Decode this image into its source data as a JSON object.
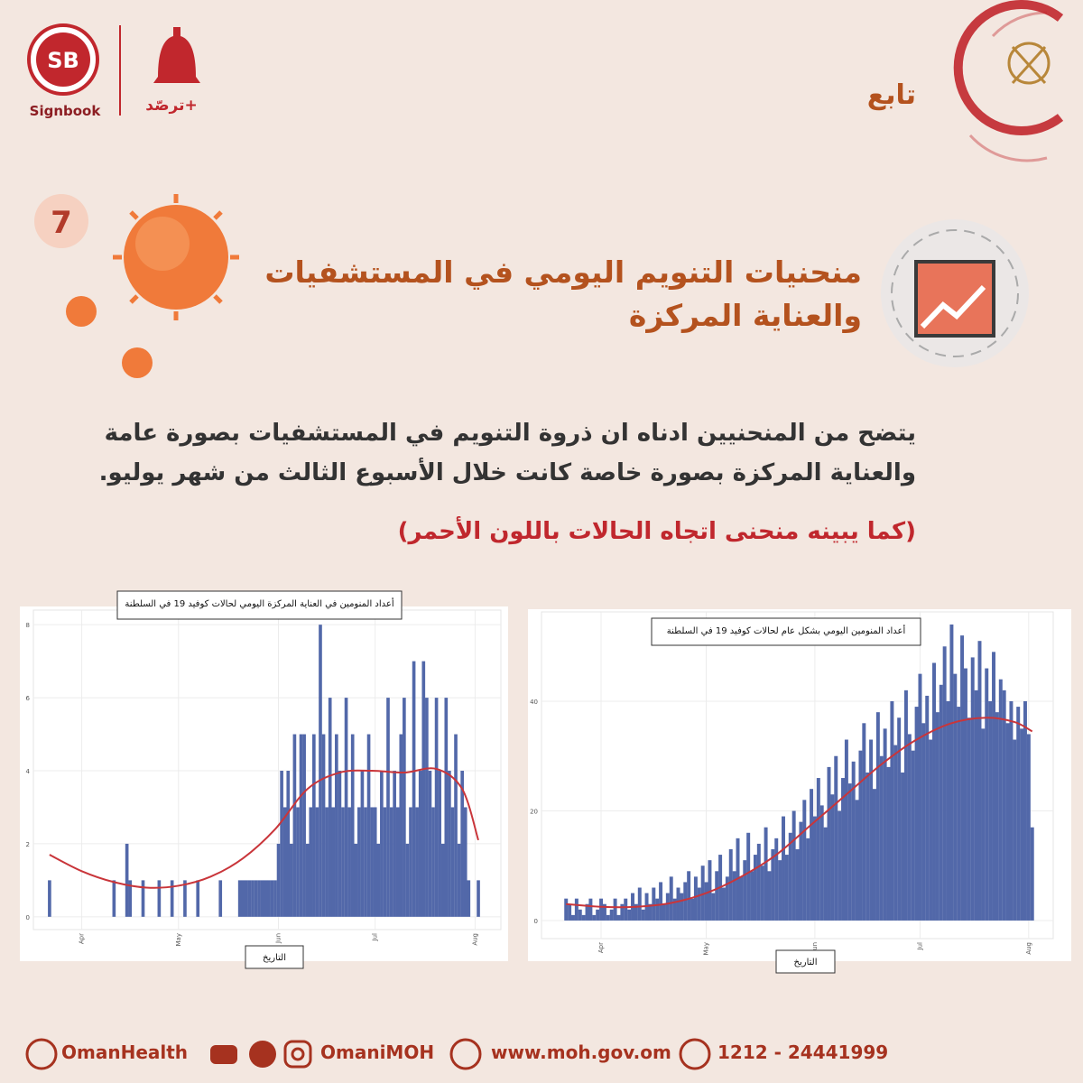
{
  "header": {
    "brand_mark": "SB",
    "brand": "Signbook",
    "app": "ترصّد+",
    "section": "تابع"
  },
  "item": {
    "number": "7",
    "title_lines": [
      "منحنيات التنويم اليومي في المستشفيات",
      "والعناية المركزة"
    ]
  },
  "body": {
    "lines": [
      "يتضح من المنحنيين ادناه ان ذروة التنويم في المستشفيات بصورة عامة",
      "والعناية المركزة بصورة خاصة كانت خلال الأسبوع الثالث من شهر يوليو."
    ],
    "note": "(كما يبينه منحنى اتجاه الحالات باللون الأحمر)"
  },
  "chart_data": [
    {
      "type": "bar",
      "title": "أعداد المنومين في العناية المركزة اليومي لحالات كوفيد 19 في السلطنة",
      "xlabel": "التاريخ",
      "xlim": [
        -5,
        140
      ],
      "xticks": [
        {
          "value": 10,
          "label": "Apr"
        },
        {
          "value": 40,
          "label": "May"
        },
        {
          "value": 71,
          "label": "Jun"
        },
        {
          "value": 101,
          "label": "Jul"
        },
        {
          "value": 132,
          "label": "Aug"
        }
      ],
      "ylim": [
        -0.35,
        8.4
      ],
      "yticks": [
        0,
        2,
        4,
        6,
        8
      ],
      "grid": true,
      "series": [
        {
          "type": "bar",
          "color": "#5268a9",
          "x": [
            0,
            1,
            2,
            3,
            4,
            5,
            6,
            7,
            8,
            9,
            10,
            11,
            12,
            13,
            14,
            15,
            16,
            17,
            18,
            19,
            20,
            21,
            22,
            23,
            24,
            25,
            26,
            27,
            28,
            29,
            30,
            31,
            32,
            33,
            34,
            35,
            36,
            37,
            38,
            39,
            40,
            41,
            42,
            43,
            44,
            45,
            46,
            47,
            48,
            49,
            50,
            51,
            52,
            53,
            54,
            55,
            56,
            57,
            58,
            59,
            60,
            61,
            62,
            63,
            64,
            65,
            66,
            67,
            68,
            69,
            70,
            71,
            72,
            73,
            74,
            75,
            76,
            77,
            78,
            79,
            80,
            81,
            82,
            83,
            84,
            85,
            86,
            87,
            88,
            89,
            90,
            91,
            92,
            93,
            94,
            95,
            96,
            97,
            98,
            99,
            100,
            101,
            102,
            103,
            104,
            105,
            106,
            107,
            108,
            109,
            110,
            111,
            112,
            113,
            114,
            115,
            116,
            117,
            118,
            119,
            120,
            121,
            122,
            123,
            124,
            125,
            126,
            127,
            128,
            129,
            130,
            131,
            132,
            133
          ],
          "values": [
            1,
            0,
            0,
            0,
            0,
            0,
            0,
            0,
            0,
            0,
            0,
            0,
            0,
            0,
            0,
            0,
            0,
            0,
            0,
            0,
            1,
            0,
            0,
            0,
            2,
            1,
            0,
            0,
            0,
            1,
            0,
            0,
            0,
            0,
            1,
            0,
            0,
            0,
            1,
            0,
            0,
            0,
            1,
            0,
            0,
            0,
            1,
            0,
            0,
            0,
            0,
            0,
            0,
            1,
            0,
            0,
            0,
            0,
            0,
            1,
            1,
            1,
            1,
            1,
            1,
            1,
            1,
            1,
            1,
            1,
            1,
            2,
            4,
            3,
            4,
            2,
            5,
            3,
            5,
            5,
            2,
            3,
            5,
            3,
            8,
            5,
            3,
            6,
            3,
            5,
            4,
            3,
            6,
            3,
            5,
            2,
            3,
            4,
            3,
            5,
            3,
            3,
            2,
            4,
            3,
            6,
            3,
            4,
            3,
            5,
            6,
            2,
            3,
            7,
            3,
            4,
            7,
            6,
            4,
            3,
            6,
            4,
            2,
            6,
            4,
            3,
            5,
            2,
            4,
            3,
            1,
            0,
            0,
            1
          ]
        },
        {
          "type": "line",
          "color": "#c9353a",
          "x": [
            0,
            10,
            20,
            30,
            40,
            50,
            60,
            70,
            80,
            90,
            100,
            110,
            120,
            128,
            133
          ],
          "values": [
            1.7,
            1.25,
            0.95,
            0.8,
            0.85,
            1.1,
            1.6,
            2.4,
            3.5,
            3.95,
            4.0,
            3.95,
            4.05,
            3.5,
            2.1
          ]
        }
      ]
    },
    {
      "type": "bar",
      "title": "أعداد المنومين اليومي بشكل عام لحالات كوفيد 19 في السلطنة",
      "xlabel": "التاريخ",
      "xlim": [
        -7,
        139
      ],
      "xticks": [
        {
          "value": 10,
          "label": "Apr"
        },
        {
          "value": 40,
          "label": "May"
        },
        {
          "value": 71,
          "label": "Jun"
        },
        {
          "value": 101,
          "label": "Jul"
        },
        {
          "value": 132,
          "label": "Aug"
        }
      ],
      "ylim": [
        -3.3,
        56.3
      ],
      "yticks": [
        0,
        20,
        40
      ],
      "grid": true,
      "series": [
        {
          "type": "bar",
          "color": "#5268a9",
          "x": [
            0,
            1,
            2,
            3,
            4,
            5,
            6,
            7,
            8,
            9,
            10,
            11,
            12,
            13,
            14,
            15,
            16,
            17,
            18,
            19,
            20,
            21,
            22,
            23,
            24,
            25,
            26,
            27,
            28,
            29,
            30,
            31,
            32,
            33,
            34,
            35,
            36,
            37,
            38,
            39,
            40,
            41,
            42,
            43,
            44,
            45,
            46,
            47,
            48,
            49,
            50,
            51,
            52,
            53,
            54,
            55,
            56,
            57,
            58,
            59,
            60,
            61,
            62,
            63,
            64,
            65,
            66,
            67,
            68,
            69,
            70,
            71,
            72,
            73,
            74,
            75,
            76,
            77,
            78,
            79,
            80,
            81,
            82,
            83,
            84,
            85,
            86,
            87,
            88,
            89,
            90,
            91,
            92,
            93,
            94,
            95,
            96,
            97,
            98,
            99,
            100,
            101,
            102,
            103,
            104,
            105,
            106,
            107,
            108,
            109,
            110,
            111,
            112,
            113,
            114,
            115,
            116,
            117,
            118,
            119,
            120,
            121,
            122,
            123,
            124,
            125,
            126,
            127,
            128,
            129,
            130,
            131,
            132,
            133
          ],
          "values": [
            4,
            3,
            1,
            4,
            2,
            1,
            3,
            4,
            1,
            2,
            4,
            3,
            1,
            2,
            4,
            1,
            3,
            4,
            2,
            5,
            3,
            6,
            2,
            5,
            3,
            6,
            4,
            7,
            3,
            5,
            8,
            4,
            6,
            5,
            7,
            9,
            4,
            8,
            6,
            10,
            7,
            11,
            5,
            9,
            12,
            6,
            8,
            13,
            9,
            15,
            8,
            11,
            16,
            9,
            12,
            14,
            10,
            17,
            9,
            13,
            15,
            11,
            19,
            12,
            16,
            20,
            13,
            18,
            22,
            15,
            24,
            19,
            26,
            21,
            17,
            28,
            23,
            30,
            20,
            26,
            33,
            25,
            29,
            22,
            31,
            36,
            27,
            33,
            24,
            38,
            30,
            35,
            28,
            40,
            32,
            37,
            27,
            42,
            34,
            31,
            39,
            45,
            36,
            41,
            33,
            47,
            38,
            43,
            50,
            40,
            54,
            45,
            39,
            52,
            46,
            37,
            48,
            42,
            51,
            35,
            46,
            40,
            49,
            38,
            44,
            42,
            36,
            40,
            33,
            39,
            35,
            40,
            34,
            17
          ]
        },
        {
          "type": "line",
          "color": "#c9353a",
          "x": [
            0,
            10,
            20,
            30,
            40,
            50,
            60,
            70,
            80,
            90,
            100,
            110,
            120,
            128,
            133
          ],
          "values": [
            3,
            2.5,
            2.5,
            3.2,
            5,
            8,
            12,
            17.5,
            23,
            28.5,
            33,
            36,
            37,
            36.2,
            34.5
          ]
        }
      ]
    }
  ],
  "footer": {
    "facebook": "OmanHealth",
    "social": "OmaniMOH",
    "web": "www.moh.gov.om",
    "phone": "1212 - 24441999"
  }
}
